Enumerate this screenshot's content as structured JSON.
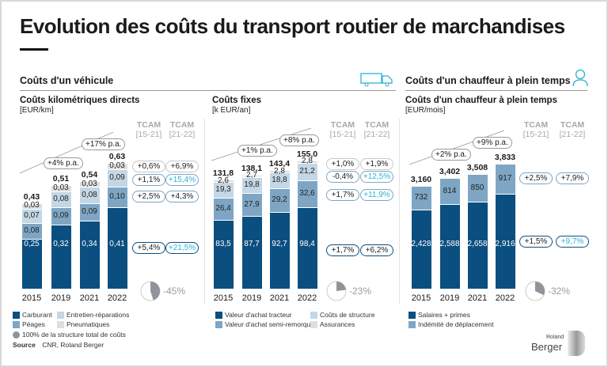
{
  "title": "Evolution des coûts du transport routier de marchandises",
  "sections": {
    "vehicle": "Coûts d'un véhicule",
    "driver": "Coûts d'un chauffeur à plein temps"
  },
  "tcam_header": {
    "label": "TCAM",
    "p1": "[15-21]",
    "p2": "[21-22]"
  },
  "colors": {
    "dark": "#0b4f80",
    "mid": "#7ea6c4",
    "light": "#c3d7e6",
    "gray": "#dededf",
    "highlight": "#29b2d6"
  },
  "chart_data": [
    {
      "type": "bar",
      "stacked": true,
      "title": "Coûts kilométriques directs",
      "unit": "[EUR/km]",
      "categories": [
        "2015",
        "2019",
        "2021",
        "2022"
      ],
      "totals": [
        "0,43",
        "0,51",
        "0,54",
        "0,63"
      ],
      "series": [
        {
          "name": "Carburant",
          "color": "dark",
          "values": [
            0.25,
            0.32,
            0.34,
            0.41
          ],
          "labels": [
            "0,25",
            "0,32",
            "0,34",
            "0,41"
          ],
          "tcam": [
            "+5,4%",
            "+21,5%"
          ],
          "highlight": [
            false,
            true
          ]
        },
        {
          "name": "Péages",
          "color": "mid",
          "values": [
            0.08,
            0.09,
            0.09,
            0.1
          ],
          "labels": [
            "0,08",
            "0,09",
            "0,09",
            "0,10"
          ],
          "tcam": [
            "+2,5%",
            "+4,3%"
          ],
          "highlight": [
            false,
            false
          ]
        },
        {
          "name": "Entretien-réparations",
          "color": "light",
          "values": [
            0.07,
            0.08,
            0.08,
            0.09
          ],
          "labels": [
            "0,07",
            "0,08",
            "0,08",
            "0,09"
          ],
          "tcam": [
            "+1,1%",
            "+15,4%"
          ],
          "highlight": [
            false,
            true
          ]
        },
        {
          "name": "Pneumatiques",
          "color": "gray",
          "values": [
            0.03,
            0.03,
            0.03,
            0.03
          ],
          "labels": [
            "0,03",
            "0,03",
            "0,03",
            "0,03"
          ],
          "tcam": [
            "+0,6%",
            "+6,9%"
          ],
          "highlight": [
            false,
            false
          ]
        }
      ],
      "growth": [
        "+4% p.a.",
        "+17% p.a."
      ],
      "share_pct": 45,
      "share_label": "-45%"
    },
    {
      "type": "bar",
      "stacked": true,
      "title": "Coûts fixes",
      "unit": "[k EUR/an]",
      "categories": [
        "2015",
        "2019",
        "2021",
        "2022"
      ],
      "totals": [
        "131,8",
        "138,1",
        "143,4",
        "155,0"
      ],
      "series": [
        {
          "name": "Valeur d'achat tracteur",
          "color": "dark",
          "values": [
            83.5,
            87.7,
            92.7,
            98.4
          ],
          "labels": [
            "83,5",
            "87,7",
            "92,7",
            "98,4"
          ],
          "tcam": [
            "+1,7%",
            "+6,2%"
          ],
          "highlight": [
            false,
            false
          ]
        },
        {
          "name": "Valeur d'achat semi-remorque",
          "color": "mid",
          "values": [
            26.4,
            27.9,
            29.2,
            32.6
          ],
          "labels": [
            "26,4",
            "27,9",
            "29,2",
            "32,6"
          ],
          "tcam": [
            "+1,7%",
            "+11,9%"
          ],
          "highlight": [
            false,
            true
          ]
        },
        {
          "name": "Coûts de structure",
          "color": "light",
          "values": [
            19.3,
            19.8,
            18.8,
            21.2
          ],
          "labels": [
            "19,3",
            "19,8",
            "18,8",
            "21,2"
          ],
          "tcam": [
            "-0,4%",
            "+12,5%"
          ],
          "highlight": [
            false,
            true
          ]
        },
        {
          "name": "Assurances",
          "color": "gray",
          "values": [
            2.6,
            2.7,
            2.8,
            2.8
          ],
          "labels": [
            "2,6",
            "2,7",
            "2,8",
            "2,8"
          ],
          "tcam": [
            "+1,0%",
            "+1,9%"
          ],
          "highlight": [
            false,
            false
          ]
        }
      ],
      "growth": [
        "+1% p.a.",
        "+8% p.a."
      ],
      "share_pct": 23,
      "share_label": "-23%"
    },
    {
      "type": "bar",
      "stacked": true,
      "title": "Coûts d'un chauffeur à plein temps",
      "unit": "[EUR/mois]",
      "categories": [
        "2015",
        "2019",
        "2021",
        "2022"
      ],
      "totals": [
        "3,160",
        "3,402",
        "3,508",
        "3,833"
      ],
      "series": [
        {
          "name": "Salaires + primes",
          "color": "dark",
          "values": [
            2428,
            2588,
            2658,
            2916
          ],
          "labels": [
            "2,428",
            "2,588",
            "2,658",
            "2,916"
          ],
          "tcam": [
            "+1,5%",
            "+9,7%"
          ],
          "highlight": [
            false,
            true
          ]
        },
        {
          "name": "Indémité de déplacement",
          "color": "mid",
          "values": [
            732,
            814,
            850,
            917
          ],
          "labels": [
            "732",
            "814",
            "850",
            "917"
          ],
          "tcam": [
            "+2,5%",
            "+7,9%"
          ],
          "highlight": [
            false,
            false
          ]
        }
      ],
      "growth": [
        "+2% p.a.",
        "+9% p.a."
      ],
      "share_pct": 32,
      "share_label": "-32%"
    }
  ],
  "legend_note": "100% de la structure total de coûts",
  "source": {
    "label": "Source",
    "text": "CNR, Roland Berger"
  },
  "logo": {
    "line1": "Roland",
    "line2": "Berger"
  }
}
